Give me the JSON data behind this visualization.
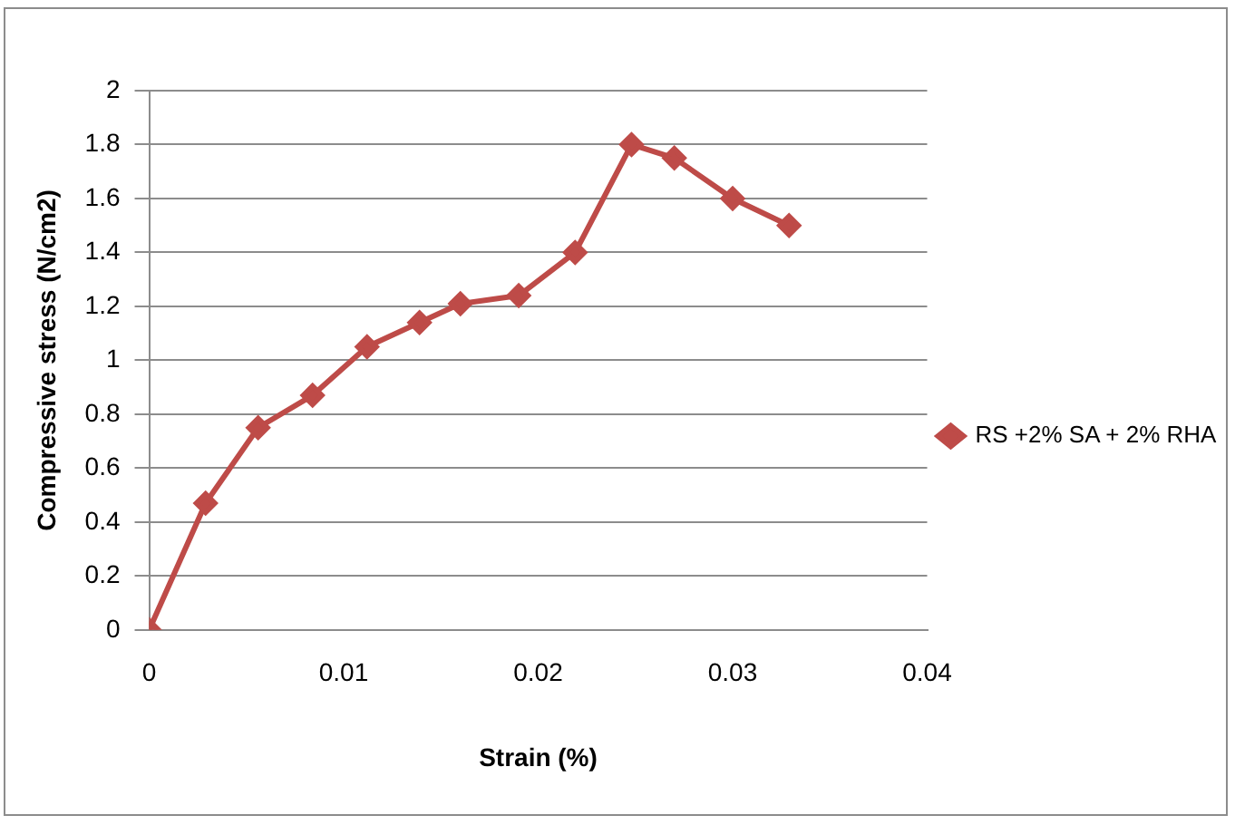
{
  "chart_data": {
    "type": "line",
    "xlabel": "Strain (%)",
    "ylabel": "Compressive stress (N/cm2)",
    "x": [
      0,
      0.0029,
      0.0056,
      0.0084,
      0.0112,
      0.0139,
      0.016,
      0.019,
      0.0219,
      0.0248,
      0.027,
      0.03,
      0.0329
    ],
    "series": [
      {
        "name": "RS +2% SA + 2% RHA",
        "color": "#be4b48",
        "values": [
          0,
          0.47,
          0.75,
          0.87,
          1.05,
          1.14,
          1.21,
          1.24,
          1.4,
          1.8,
          1.75,
          1.6,
          1.5
        ]
      }
    ],
    "xlim": [
      0,
      0.04
    ],
    "xticks": [
      0,
      0.01,
      0.02,
      0.03,
      0.04
    ],
    "ylim": [
      0,
      2
    ],
    "yticks": [
      0,
      0.2,
      0.4,
      0.6,
      0.8,
      1,
      1.2,
      1.4,
      1.6,
      1.8,
      2
    ],
    "grid": "y",
    "legend": "right",
    "marker": "diamond",
    "line_style": "solid"
  }
}
